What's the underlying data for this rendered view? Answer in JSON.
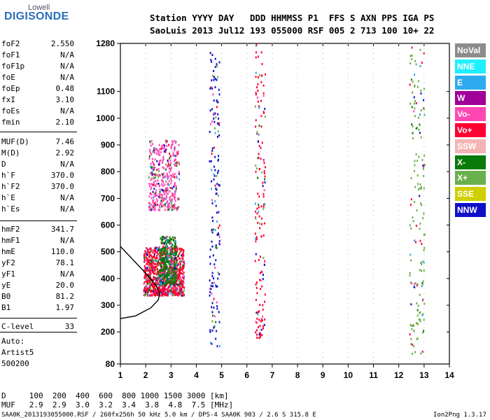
{
  "logo": {
    "top": "Lowell",
    "bottom": "DIGISONDE"
  },
  "header": {
    "line1": "Station YYYY DAY   DDD HHMMSS P1  FFS S AXN PPS IGA PS",
    "line2": "SaoLuis 2013 Jul12 193 055000 RSF 005 2 713 100 10+ 22"
  },
  "params": [
    {
      "k": "foF2",
      "v": "2.550"
    },
    {
      "k": "foF1",
      "v": "N/A"
    },
    {
      "k": "foF1p",
      "v": "N/A"
    },
    {
      "k": "foE",
      "v": "N/A"
    },
    {
      "k": "foEp",
      "v": "0.48"
    },
    {
      "k": "fxI",
      "v": "3.10"
    },
    {
      "k": "foEs",
      "v": "N/A"
    },
    {
      "k": "fmin",
      "v": "2.10"
    },
    {
      "k": "MUF(D)",
      "v": "7.46"
    },
    {
      "k": "M(D)",
      "v": "2.92"
    },
    {
      "k": "D",
      "v": "N/A"
    },
    {
      "k": "h`F",
      "v": "370.0"
    },
    {
      "k": "h`F2",
      "v": "370.0"
    },
    {
      "k": "h`E",
      "v": "N/A"
    },
    {
      "k": "h`Es",
      "v": "N/A"
    },
    {
      "k": "hmF2",
      "v": "341.7"
    },
    {
      "k": "hmF1",
      "v": "N/A"
    },
    {
      "k": "hmE",
      "v": "110.0"
    },
    {
      "k": "yF2",
      "v": "78.1"
    },
    {
      "k": "yF1",
      "v": "N/A"
    },
    {
      "k": "yE",
      "v": "20.0"
    },
    {
      "k": "B0",
      "v": "81.2"
    },
    {
      "k": "B1",
      "v": "1.97"
    },
    {
      "k": "C-level",
      "v": "33"
    }
  ],
  "autoscale": {
    "line1": "Auto:",
    "line2": "Artist5",
    "line3": "500200"
  },
  "legend": [
    {
      "name": "NoVal",
      "color": "#8c8c8c"
    },
    {
      "name": "NNE",
      "color": "#1ff0ff"
    },
    {
      "name": "E",
      "color": "#2eaaf0"
    },
    {
      "name": "W",
      "color": "#a0009a"
    },
    {
      "name": "Vo-",
      "color": "#ff47b4"
    },
    {
      "name": "Vo+",
      "color": "#ff0033"
    },
    {
      "name": "SSW",
      "color": "#f4b4b4"
    },
    {
      "name": "X-",
      "color": "#0a7a0a"
    },
    {
      "name": "X+",
      "color": "#6ab04c"
    },
    {
      "name": "SSE",
      "color": "#d0d000"
    },
    {
      "name": "NNW",
      "color": "#1010c8"
    }
  ],
  "muf_table": {
    "d_row": "D     100  200  400  600  800 1000 1500 3000 [km]",
    "muf_row": "MUF   2.9  2.9  3.0  3.2  3.4  3.8  4.8  7.5 [MHz]"
  },
  "footer": {
    "left": "SAA0K_2013193055000.RSF / 260fx256h 50 kHz 5.0 km / DPS-4 SAA0K 903 / 2.6 S 315.8 E",
    "right": "Ion2Png 1.3.17"
  },
  "chart_data": {
    "type": "scatter",
    "title": "",
    "xlabel": "",
    "ylabel": "",
    "xlim": [
      1,
      14
    ],
    "ylim": [
      80,
      1280
    ],
    "xticks": [
      1,
      2,
      3,
      4,
      5,
      6,
      7,
      8,
      9,
      10,
      11,
      12,
      13,
      14
    ],
    "yticks": [
      80,
      200,
      300,
      400,
      500,
      600,
      700,
      800,
      900,
      1000,
      1100,
      1280
    ],
    "clusters": [
      {
        "series": "Vo+",
        "x": [
          1.9,
          3.5
        ],
        "y": [
          340,
          520
        ],
        "density": "high"
      },
      {
        "series": "Vo-",
        "x": [
          2.1,
          3.3
        ],
        "y": [
          660,
          920
        ],
        "density": "medium"
      },
      {
        "series": "X-",
        "x": [
          2.5,
          3.2
        ],
        "y": [
          380,
          560
        ],
        "density": "medium"
      },
      {
        "series": "Vo+",
        "x": [
          6.3,
          6.7
        ],
        "y": [
          180,
          1280
        ],
        "density": "low"
      },
      {
        "series": "NNW",
        "x": [
          4.5,
          4.9
        ],
        "y": [
          150,
          1250
        ],
        "density": "low"
      },
      {
        "series": "X+",
        "x": [
          12.4,
          13.0
        ],
        "y": [
          120,
          1280
        ],
        "density": "low"
      }
    ],
    "profile_curve": {
      "x": [
        1,
        1.6,
        2.2,
        2.5,
        2.55,
        2.4,
        1.9,
        1.0
      ],
      "y": [
        250,
        260,
        290,
        320,
        345,
        375,
        430,
        520
      ]
    },
    "grid": false
  }
}
